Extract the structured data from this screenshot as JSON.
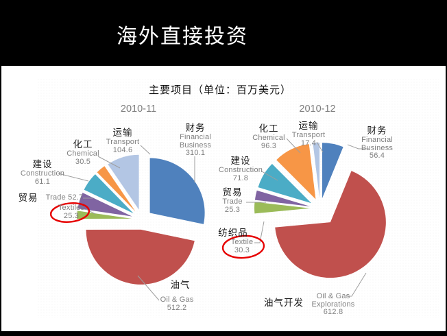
{
  "slide": {
    "title": "海外直接投资",
    "subtitle": "主要项目（单位：百万美元）"
  },
  "colors": {
    "title_band": "#000000",
    "title_text": "#ffffff",
    "chart_title_gray": "#7d7d7d",
    "label_gray": "#7f7f7f",
    "label_black": "#1a1a1a",
    "annotation_red": "#e60000",
    "leader_line": "#9e9e9e"
  },
  "chart_data": [
    {
      "type": "pie",
      "title": "2010-11",
      "unit": "百万美元",
      "labels_style": "callout",
      "legend": "none",
      "slices": [
        {
          "name_cn": "财务",
          "name_en": "Financial Business",
          "value": 310.1,
          "color": "#4f81bd",
          "annotated": false
        },
        {
          "name_cn": "油气",
          "name_en": "Oil & Gas",
          "value": 512.2,
          "color": "#c0504d",
          "annotated": false
        },
        {
          "name_cn": "",
          "name_en": "Textiles",
          "value": 25.3,
          "color": "#9bbb59",
          "annotated": true
        },
        {
          "name_cn": "贸易",
          "name_en": "Trade",
          "value": 52.7,
          "color": "#8064a2",
          "annotated": false
        },
        {
          "name_cn": "建设",
          "name_en": "Construction",
          "value": 61.1,
          "color": "#4bacc6",
          "annotated": false
        },
        {
          "name_cn": "化工",
          "name_en": "Chemical",
          "value": 30.5,
          "color": "#f79646",
          "annotated": false
        },
        {
          "name_cn": "运输",
          "name_en": "Transport",
          "value": 104.6,
          "color": "#b3c6e4",
          "annotated": false
        }
      ]
    },
    {
      "type": "pie",
      "title": "2010-12",
      "unit": "百万美元",
      "labels_style": "callout",
      "legend": "none",
      "slices": [
        {
          "name_cn": "财务",
          "name_en": "Financial Business",
          "value": 56.4,
          "color": "#4f81bd",
          "annotated": false
        },
        {
          "name_cn": "油气开发",
          "name_en": "Oil & Gas Explorations",
          "value": 612.8,
          "color": "#c0504d",
          "annotated": false
        },
        {
          "name_cn": "纺织品",
          "name_en": "Textile",
          "value": 30.3,
          "color": "#9bbb59",
          "annotated": true
        },
        {
          "name_cn": "贸易",
          "name_en": "Trade",
          "value": 25.3,
          "color": "#8064a2",
          "annotated": false
        },
        {
          "name_cn": "建设",
          "name_en": "Construction",
          "value": 71.8,
          "color": "#4bacc6",
          "annotated": false
        },
        {
          "name_cn": "化工",
          "name_en": "Chemical",
          "value": 96.3,
          "color": "#f79646",
          "annotated": false
        },
        {
          "name_cn": "运输",
          "name_en": "Transport",
          "value": 17.4,
          "color": "#b3c6e4",
          "annotated": false
        }
      ]
    }
  ]
}
